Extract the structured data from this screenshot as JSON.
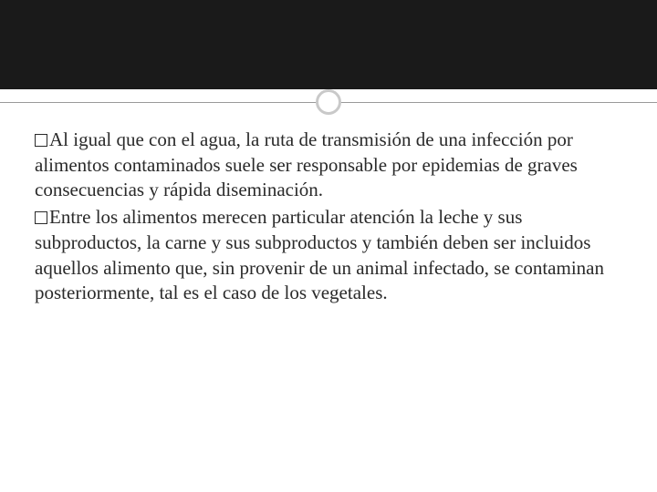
{
  "slide": {
    "header_band_color": "#1a1a1a",
    "divider_color": "#999999",
    "circle_border_color": "#c9c9c9",
    "background_color": "#ffffff",
    "text_color": "#2a2a2a",
    "font_family": "Georgia, serif",
    "body_fontsize": 21
  },
  "bullets": [
    {
      "text": "Al igual que con el agua, la ruta de transmisión de una infección por alimentos contaminados suele ser responsable por epidemias de graves consecuencias y rápida diseminación."
    },
    {
      "text": "Entre los alimentos merecen particular atención la leche y sus subproductos, la carne y sus subproductos y también deben ser incluidos aquellos alimento que, sin provenir de un animal infectado, se contaminan posteriormente, tal es el caso de los vegetales."
    }
  ]
}
